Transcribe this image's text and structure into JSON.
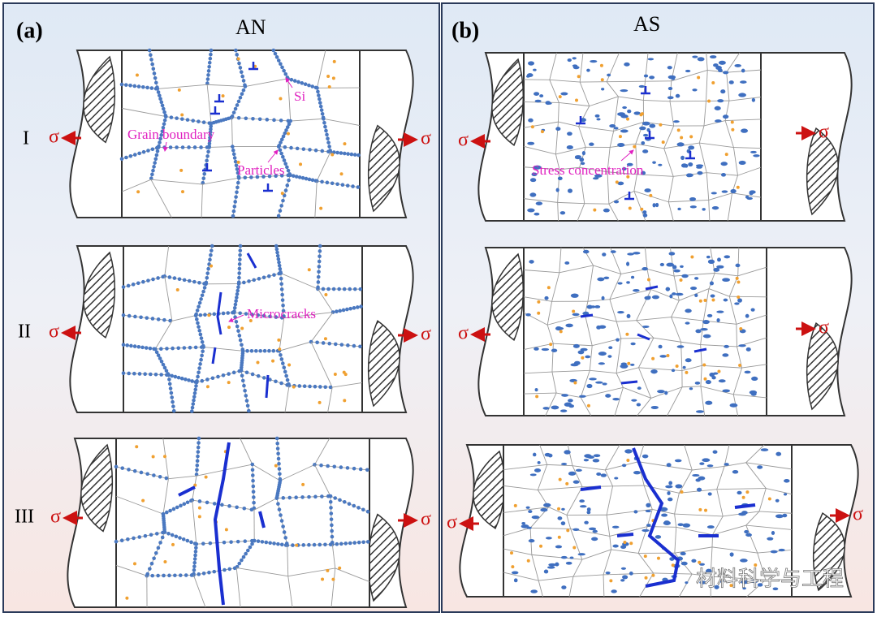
{
  "panels": [
    {
      "label": "(a)",
      "title": "AN",
      "stages": [
        "I",
        "II",
        "III"
      ],
      "annotations": [
        "Si",
        "Grain boundary",
        "Particles",
        "Microcracks"
      ]
    },
    {
      "label": "(b)",
      "title": "AS",
      "annotations": [
        "Stress concentration"
      ]
    }
  ],
  "stress_symbol": "σ",
  "watermark": "材料科学与工程"
}
